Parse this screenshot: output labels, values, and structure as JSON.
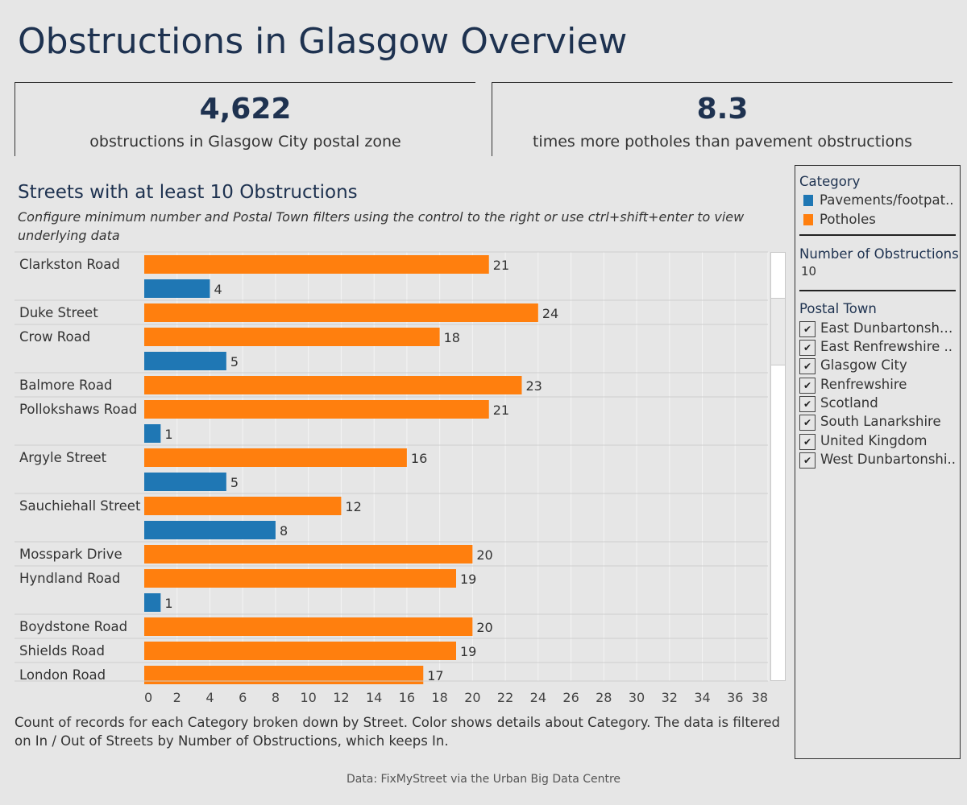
{
  "title": "Obstructions in Glasgow Overview",
  "kpis": [
    {
      "value": "4,622",
      "label": "obstructions in Glasgow City postal zone"
    },
    {
      "value": "8.3",
      "label": "times more potholes than pavement obstructions"
    }
  ],
  "chart_title": "Streets with at least 10 Obstructions",
  "chart_subtitle": "Configure minimum number  and Postal Town filters using the control to the right or use ctrl+shift+enter to view underlying data",
  "caption": "Count of records for each Category broken down by Street.  Color shows details about Category. The data is filtered on In / Out of Streets by Number of Obstructions, which keeps In.",
  "source": "Data: FixMyStreet via the Urban Big Data Centre",
  "colors": {
    "pavements": "#1f77b4",
    "potholes": "#ff7f0e"
  },
  "chart_data": {
    "type": "bar",
    "orientation": "horizontal",
    "title": "Streets with at least 10 Obstructions",
    "xlim": [
      0,
      38
    ],
    "xticks": [
      0,
      2,
      4,
      6,
      8,
      10,
      12,
      14,
      16,
      18,
      20,
      22,
      24,
      26,
      28,
      30,
      32,
      34,
      36,
      38
    ],
    "grid": true,
    "legend_position": "right",
    "categories": [
      "Clarkston Road",
      "Duke Street",
      "Crow Road",
      "Balmore Road",
      "Pollokshaws Road",
      "Argyle Street",
      "Sauchiehall Street",
      "Mosspark Drive",
      "Hyndland Road",
      "Boydstone Road",
      "Shields Road",
      "London Road"
    ],
    "series": [
      {
        "name": "Pavements/footpaths",
        "values": [
          4,
          null,
          5,
          null,
          1,
          5,
          8,
          null,
          1,
          null,
          null,
          null
        ]
      },
      {
        "name": "Potholes",
        "values": [
          21,
          24,
          18,
          23,
          21,
          16,
          12,
          20,
          19,
          20,
          19,
          17
        ]
      }
    ]
  },
  "sidebar": {
    "category_title": "Category",
    "legend": [
      {
        "label": "Pavements/footpat..",
        "color": "#1f77b4"
      },
      {
        "label": "Potholes",
        "color": "#ff7f0e"
      }
    ],
    "min_title": "Number of Obstructions",
    "min_value": "10",
    "postal_title": "Postal Town",
    "postal_towns": [
      {
        "label": "East Dunbartonshir..",
        "checked": true
      },
      {
        "label": "East Renfrewshire ..",
        "checked": true
      },
      {
        "label": "Glasgow City",
        "checked": true
      },
      {
        "label": "Renfrewshire",
        "checked": true
      },
      {
        "label": "Scotland",
        "checked": true
      },
      {
        "label": "South Lanarkshire",
        "checked": true
      },
      {
        "label": "United Kingdom",
        "checked": true
      },
      {
        "label": "West Dunbartonshi..",
        "checked": true
      }
    ]
  }
}
